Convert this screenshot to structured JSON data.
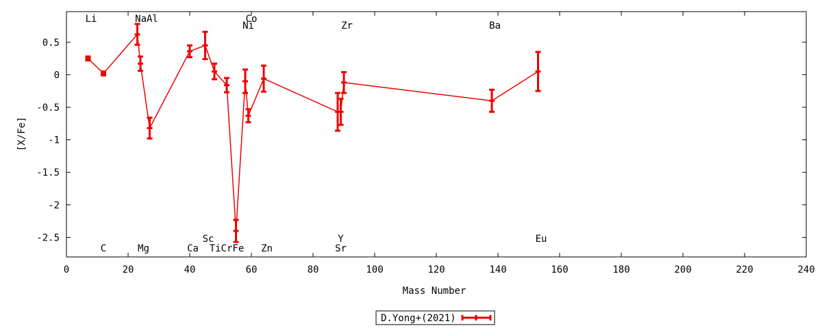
{
  "chart_data": {
    "type": "line",
    "title": "",
    "xlabel": "Mass Number",
    "ylabel": "[X/Fe]",
    "xlim": [
      0,
      240
    ],
    "ylim": [
      -2.8,
      0.97
    ],
    "xticks": [
      0,
      20,
      40,
      60,
      80,
      100,
      120,
      140,
      160,
      180,
      200,
      220,
      240
    ],
    "yticks": [
      0.5,
      0,
      -0.5,
      -1,
      -1.5,
      -2,
      -2.5
    ],
    "ytick_labels": [
      "0.5",
      "0",
      "-0.5",
      "-1",
      "-1.5",
      "-2",
      "-2.5"
    ],
    "grid": false,
    "legend_position": "bottom-center",
    "series": [
      {
        "name": "D.Yong+(2021)",
        "color": "#ee0000",
        "points": [
          {
            "x": 7,
            "y": 0.25,
            "err": 0.03
          },
          {
            "x": 12,
            "y": 0.02,
            "err": 0.03
          },
          {
            "x": 23,
            "y": 0.62,
            "err": 0.16
          },
          {
            "x": 24,
            "y": 0.17,
            "err": 0.11
          },
          {
            "x": 27,
            "y": -0.82,
            "err": 0.16
          },
          {
            "x": 40,
            "y": 0.36,
            "err": 0.09
          },
          {
            "x": 45,
            "y": 0.45,
            "err": 0.21
          },
          {
            "x": 48,
            "y": 0.05,
            "err": 0.12
          },
          {
            "x": 52,
            "y": -0.16,
            "err": 0.11
          },
          {
            "x": 55,
            "y": -2.4,
            "err": 0.17
          },
          {
            "x": 58,
            "y": -0.1,
            "err": 0.18
          },
          {
            "x": 59,
            "y": -0.63,
            "err": 0.1
          },
          {
            "x": 64,
            "y": -0.06,
            "err": 0.2
          },
          {
            "x": 88,
            "y": -0.57,
            "err": 0.29
          },
          {
            "x": 89,
            "y": -0.57,
            "err": 0.2
          },
          {
            "x": 90,
            "y": -0.12,
            "err": 0.16
          },
          {
            "x": 138,
            "y": -0.4,
            "err": 0.17
          },
          {
            "x": 153,
            "y": 0.05,
            "err": 0.3
          }
        ]
      }
    ],
    "element_labels": [
      {
        "text": "Li",
        "x": 8,
        "row": "top1"
      },
      {
        "text": "NaAl",
        "x": 26,
        "row": "top1"
      },
      {
        "text": "Co",
        "x": 60,
        "row": "top1"
      },
      {
        "text": "Ni",
        "x": 59,
        "row": "top2"
      },
      {
        "text": "Zr",
        "x": 91,
        "row": "top2"
      },
      {
        "text": "Ba",
        "x": 139,
        "row": "top2"
      },
      {
        "text": "Sc",
        "x": 46,
        "row": "bottom1"
      },
      {
        "text": "Y",
        "x": 89,
        "row": "bottom1"
      },
      {
        "text": "Eu",
        "x": 154,
        "row": "bottom1"
      },
      {
        "text": "C",
        "x": 12,
        "row": "bottom2"
      },
      {
        "text": "Mg",
        "x": 25,
        "row": "bottom2"
      },
      {
        "text": "Ca",
        "x": 41,
        "row": "bottom2"
      },
      {
        "text": "TiCrFe",
        "x": 52,
        "row": "bottom2"
      },
      {
        "text": "Zn",
        "x": 65,
        "row": "bottom2"
      },
      {
        "text": "Sr",
        "x": 89,
        "row": "bottom2"
      }
    ]
  }
}
